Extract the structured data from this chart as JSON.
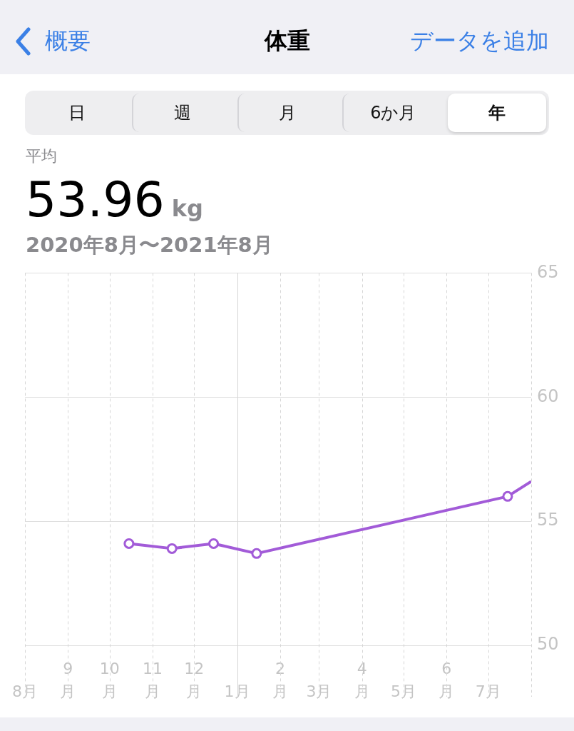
{
  "chart_data": {
    "type": "line",
    "title": "体重",
    "subtitle": "2020年8月〜2021年8月",
    "annotations": [
      "概要",
      "データを追加",
      "日",
      "週",
      "月",
      "6か月",
      "年",
      "平均",
      "53.96",
      "kg"
    ],
    "x": [
      "2020-10-15",
      "2020-11-15",
      "2020-12-15",
      "2021-01-15",
      "2021-07-15",
      "2021-08-01"
    ],
    "series": [
      {
        "color": "#a25bd8",
        "values": [
          54.1,
          53.9,
          54.1,
          53.7,
          56.0,
          56.6
        ]
      }
    ],
    "xlim": [
      "2020-08-01",
      "2021-08-01"
    ],
    "xticks": [
      {
        "value": "2020-08-01",
        "label": "8月"
      },
      {
        "value": "2020-09-01",
        "label": "9\n月"
      },
      {
        "value": "2020-10-01",
        "label": "10\n月"
      },
      {
        "value": "2020-11-01",
        "label": "11\n月"
      },
      {
        "value": "2020-12-01",
        "label": "12\n月"
      },
      {
        "value": "2021-01-01",
        "label": "1月"
      },
      {
        "value": "2021-02-01",
        "label": "2\n月"
      },
      {
        "value": "2021-03-01",
        "label": "3月"
      },
      {
        "value": "2021-04-01",
        "label": "4\n月"
      },
      {
        "value": "2021-05-01",
        "label": "5月"
      },
      {
        "value": "2021-06-01",
        "label": "6\n月"
      },
      {
        "value": "2021-07-01",
        "label": "7月"
      }
    ],
    "ylim": [
      50,
      65
    ],
    "yticks": [
      50,
      55,
      60,
      65
    ],
    "ref_lines": [
      {
        "axis": "x",
        "value": "2021-01-01",
        "color": "#d6d6d6",
        "line_style": "solid"
      }
    ],
    "grid": true,
    "legend": false,
    "marker": "circle",
    "line_style": "solid"
  }
}
